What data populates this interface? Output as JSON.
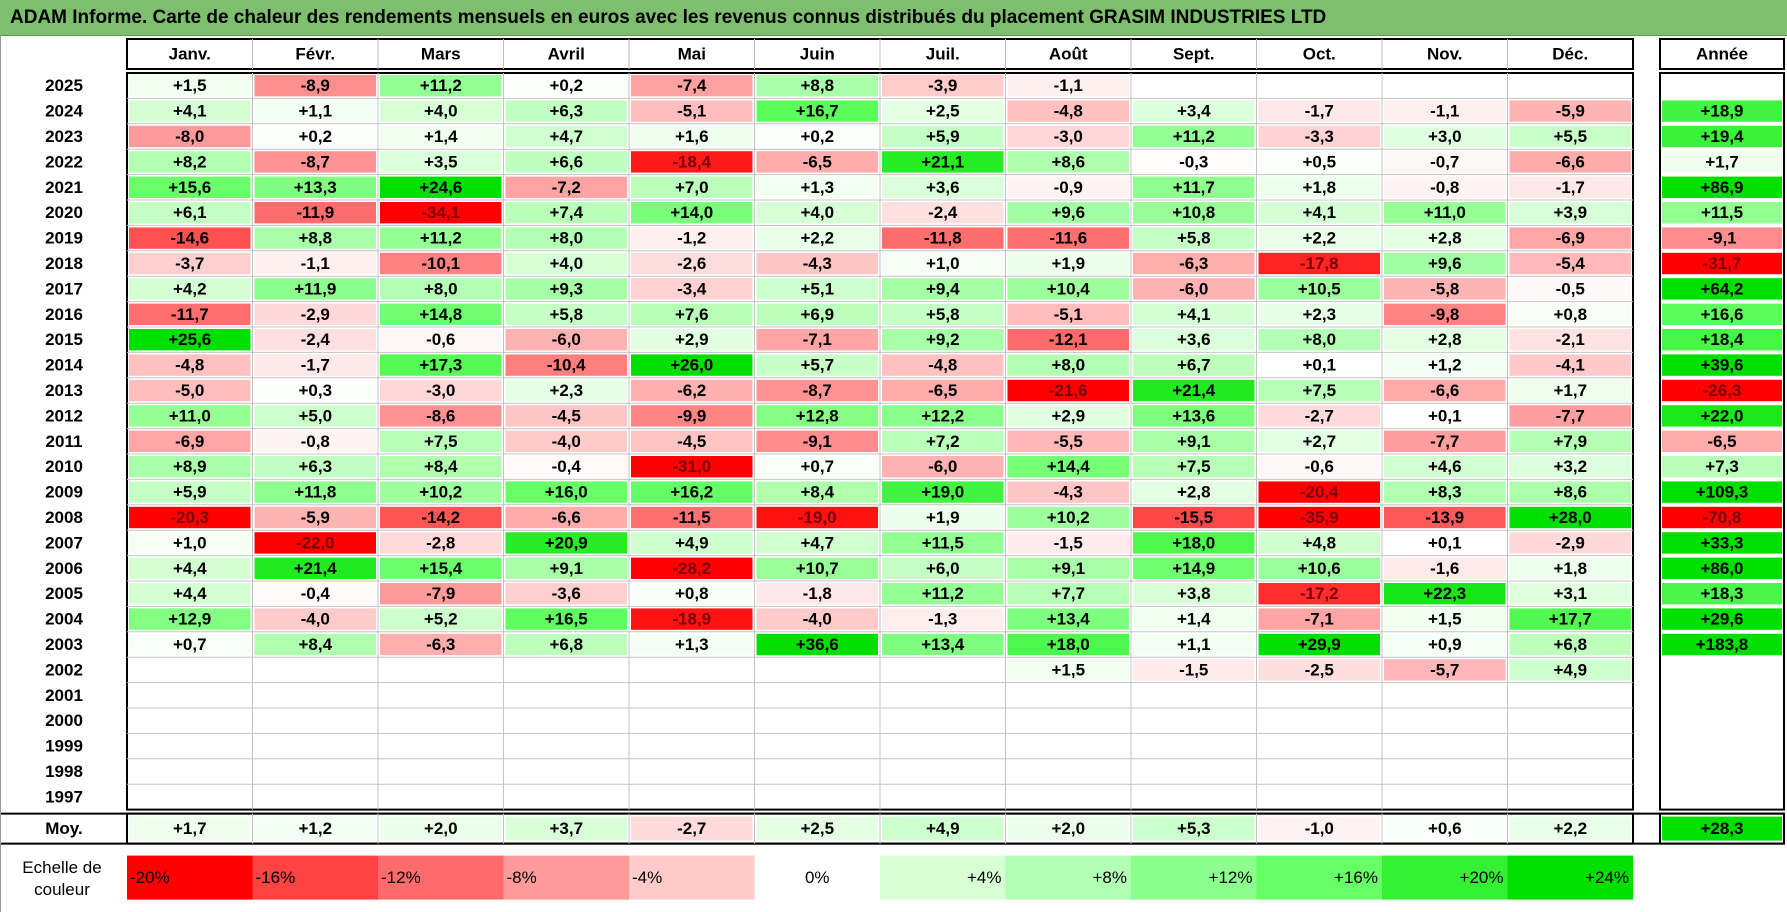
{
  "title": "ADAM Informe. Carte de chaleur des rendements mensuels en euros avec les revenus connus distribués du placement GRASIM INDUSTRIES LTD",
  "chart_data": {
    "type": "heatmap",
    "months": [
      "Janv.",
      "Févr.",
      "Mars",
      "Avril",
      "Mai",
      "Juin",
      "Juil.",
      "Août",
      "Sept.",
      "Oct.",
      "Nov.",
      "Déc."
    ],
    "year_header": "Année",
    "rows": [
      {
        "year": "2025",
        "values": [
          "+1,5",
          "-8,9",
          "+11,2",
          "+0,2",
          "-7,4",
          "+8,8",
          "-3,9",
          "-1,1",
          "",
          "",
          "",
          ""
        ],
        "annual": ""
      },
      {
        "year": "2024",
        "values": [
          "+4,1",
          "+1,1",
          "+4,0",
          "+6,3",
          "-5,1",
          "+16,7",
          "+2,5",
          "-4,8",
          "+3,4",
          "-1,7",
          "-1,1",
          "-5,9"
        ],
        "annual": "+18,9"
      },
      {
        "year": "2023",
        "values": [
          "-8,0",
          "+0,2",
          "+1,4",
          "+4,7",
          "+1,6",
          "+0,2",
          "+5,9",
          "-3,0",
          "+11,2",
          "-3,3",
          "+3,0",
          "+5,5"
        ],
        "annual": "+19,4"
      },
      {
        "year": "2022",
        "values": [
          "+8,2",
          "-8,7",
          "+3,5",
          "+6,6",
          "-18,4",
          "-6,5",
          "+21,1",
          "+8,6",
          "-0,3",
          "+0,5",
          "-0,7",
          "-6,6"
        ],
        "annual": "+1,7"
      },
      {
        "year": "2021",
        "values": [
          "+15,6",
          "+13,3",
          "+24,6",
          "-7,2",
          "+7,0",
          "+1,3",
          "+3,6",
          "-0,9",
          "+11,7",
          "+1,8",
          "-0,8",
          "-1,7"
        ],
        "annual": "+86,9"
      },
      {
        "year": "2020",
        "values": [
          "+6,1",
          "-11,9",
          "-34,1",
          "+7,4",
          "+14,0",
          "+4,0",
          "-2,4",
          "+9,6",
          "+10,8",
          "+4,1",
          "+11,0",
          "+3,9"
        ],
        "annual": "+11,5"
      },
      {
        "year": "2019",
        "values": [
          "-14,6",
          "+8,8",
          "+11,2",
          "+8,0",
          "-1,2",
          "+2,2",
          "-11,8",
          "-11,6",
          "+5,8",
          "+2,2",
          "+2,8",
          "-6,9"
        ],
        "annual": "-9,1"
      },
      {
        "year": "2018",
        "values": [
          "-3,7",
          "-1,1",
          "-10,1",
          "+4,0",
          "-2,6",
          "-4,3",
          "+1,0",
          "+1,9",
          "-6,3",
          "-17,8",
          "+9,6",
          "-5,4"
        ],
        "annual": "-31,7"
      },
      {
        "year": "2017",
        "values": [
          "+4,2",
          "+11,9",
          "+8,0",
          "+9,3",
          "-3,4",
          "+5,1",
          "+9,4",
          "+10,4",
          "-6,0",
          "+10,5",
          "-5,8",
          "-0,5"
        ],
        "annual": "+64,2"
      },
      {
        "year": "2016",
        "values": [
          "-11,7",
          "-2,9",
          "+14,8",
          "+5,8",
          "+7,6",
          "+6,9",
          "+5,8",
          "-5,1",
          "+4,1",
          "+2,3",
          "-9,8",
          "+0,8"
        ],
        "annual": "+16,6"
      },
      {
        "year": "2015",
        "values": [
          "+25,6",
          "-2,4",
          "-0,6",
          "-6,0",
          "+2,9",
          "-7,1",
          "+9,2",
          "-12,1",
          "+3,6",
          "+8,0",
          "+2,8",
          "-2,1"
        ],
        "annual": "+18,4"
      },
      {
        "year": "2014",
        "values": [
          "-4,8",
          "-1,7",
          "+17,3",
          "-10,4",
          "+26,0",
          "+5,7",
          "-4,8",
          "+8,0",
          "+6,7",
          "+0,1",
          "+1,2",
          "-4,1"
        ],
        "annual": "+39,6"
      },
      {
        "year": "2013",
        "values": [
          "-5,0",
          "+0,3",
          "-3,0",
          "+2,3",
          "-6,2",
          "-8,7",
          "-6,5",
          "-21,6",
          "+21,4",
          "+7,5",
          "-6,6",
          "+1,7"
        ],
        "annual": "-26,3"
      },
      {
        "year": "2012",
        "values": [
          "+11,0",
          "+5,0",
          "-8,6",
          "-4,5",
          "-9,9",
          "+12,8",
          "+12,2",
          "+2,9",
          "+13,6",
          "-2,7",
          "+0,1",
          "-7,7"
        ],
        "annual": "+22,0"
      },
      {
        "year": "2011",
        "values": [
          "-6,9",
          "-0,8",
          "+7,5",
          "-4,0",
          "-4,5",
          "-9,1",
          "+7,2",
          "-5,5",
          "+9,1",
          "+2,7",
          "-7,7",
          "+7,9"
        ],
        "annual": "-6,5"
      },
      {
        "year": "2010",
        "values": [
          "+8,9",
          "+6,3",
          "+8,4",
          "-0,4",
          "-31,0",
          "+0,7",
          "-6,0",
          "+14,4",
          "+7,5",
          "-0,6",
          "+4,6",
          "+3,2"
        ],
        "annual": "+7,3"
      },
      {
        "year": "2009",
        "values": [
          "+5,9",
          "+11,8",
          "+10,2",
          "+16,0",
          "+16,2",
          "+8,4",
          "+19,0",
          "-4,3",
          "+2,8",
          "-20,4",
          "+8,3",
          "+8,6"
        ],
        "annual": "+109,3"
      },
      {
        "year": "2008",
        "values": [
          "-20,3",
          "-5,9",
          "-14,2",
          "-6,6",
          "-11,5",
          "-19,0",
          "+1,9",
          "+10,2",
          "-15,5",
          "-35,9",
          "-13,9",
          "+28,0"
        ],
        "annual": "-70,8"
      },
      {
        "year": "2007",
        "values": [
          "+1,0",
          "-22,0",
          "-2,8",
          "+20,9",
          "+4,9",
          "+4,7",
          "+11,5",
          "-1,5",
          "+18,0",
          "+4,8",
          "+0,1",
          "-2,9"
        ],
        "annual": "+33,3"
      },
      {
        "year": "2006",
        "values": [
          "+4,4",
          "+21,4",
          "+15,4",
          "+9,1",
          "-28,2",
          "+10,7",
          "+6,0",
          "+9,1",
          "+14,9",
          "+10,6",
          "-1,6",
          "+1,8"
        ],
        "annual": "+86,0"
      },
      {
        "year": "2005",
        "values": [
          "+4,4",
          "-0,4",
          "-7,9",
          "-3,6",
          "+0,8",
          "-1,8",
          "+11,2",
          "+7,7",
          "+3,8",
          "-17,2",
          "+22,3",
          "+3,1"
        ],
        "annual": "+18,3"
      },
      {
        "year": "2004",
        "values": [
          "+12,9",
          "-4,0",
          "+5,2",
          "+16,5",
          "-18,9",
          "-4,0",
          "-1,3",
          "+13,4",
          "+1,4",
          "-7,1",
          "+1,5",
          "+17,7"
        ],
        "annual": "+29,6"
      },
      {
        "year": "2003",
        "values": [
          "+0,7",
          "+8,4",
          "-6,3",
          "+6,8",
          "+1,3",
          "+36,6",
          "+13,4",
          "+18,0",
          "+1,1",
          "+29,9",
          "+0,9",
          "+6,8"
        ],
        "annual": "+183,8"
      },
      {
        "year": "2002",
        "values": [
          "",
          "",
          "",
          "",
          "",
          "",
          "",
          "+1,5",
          "-1,5",
          "-2,5",
          "-5,7",
          "+4,9"
        ],
        "annual": ""
      },
      {
        "year": "2001",
        "values": [
          "",
          "",
          "",
          "",
          "",
          "",
          "",
          "",
          "",
          "",
          "",
          ""
        ],
        "annual": ""
      },
      {
        "year": "2000",
        "values": [
          "",
          "",
          "",
          "",
          "",
          "",
          "",
          "",
          "",
          "",
          "",
          ""
        ],
        "annual": ""
      },
      {
        "year": "1999",
        "values": [
          "",
          "",
          "",
          "",
          "",
          "",
          "",
          "",
          "",
          "",
          "",
          ""
        ],
        "annual": ""
      },
      {
        "year": "1998",
        "values": [
          "",
          "",
          "",
          "",
          "",
          "",
          "",
          "",
          "",
          "",
          "",
          ""
        ],
        "annual": ""
      },
      {
        "year": "1997",
        "values": [
          "",
          "",
          "",
          "",
          "",
          "",
          "",
          "",
          "",
          "",
          "",
          ""
        ],
        "annual": ""
      }
    ],
    "average": {
      "label": "Moy.",
      "values": [
        "+1,7",
        "+1,2",
        "+2,0",
        "+3,7",
        "-2,7",
        "+2,5",
        "+4,9",
        "+2,0",
        "+5,3",
        "-1,0",
        "+0,6",
        "+2,2"
      ],
      "annual": "+28,3"
    },
    "color_scale": {
      "label": "Echelle de couleur",
      "stops": [
        {
          "text": "-20%",
          "value": -20,
          "color": "#ff0000"
        },
        {
          "text": "-16%",
          "value": -16,
          "color": "#ff4242"
        },
        {
          "text": "-12%",
          "value": -12,
          "color": "#ff6b6b"
        },
        {
          "text": "-8%",
          "value": -8,
          "color": "#ff9a9a"
        },
        {
          "text": "-4%",
          "value": -4,
          "color": "#ffcaca"
        },
        {
          "text": "0%",
          "value": 0,
          "color": "#ffffff"
        },
        {
          "text": "+4%",
          "value": 4,
          "color": "#d6ffd6"
        },
        {
          "text": "+8%",
          "value": 8,
          "color": "#b3ffb3"
        },
        {
          "text": "+12%",
          "value": 12,
          "color": "#8cff8c"
        },
        {
          "text": "+16%",
          "value": 16,
          "color": "#66ff66"
        },
        {
          "text": "+20%",
          "value": 20,
          "color": "#33f033"
        },
        {
          "text": "+24%",
          "value": 24,
          "color": "#00e000"
        }
      ]
    }
  }
}
